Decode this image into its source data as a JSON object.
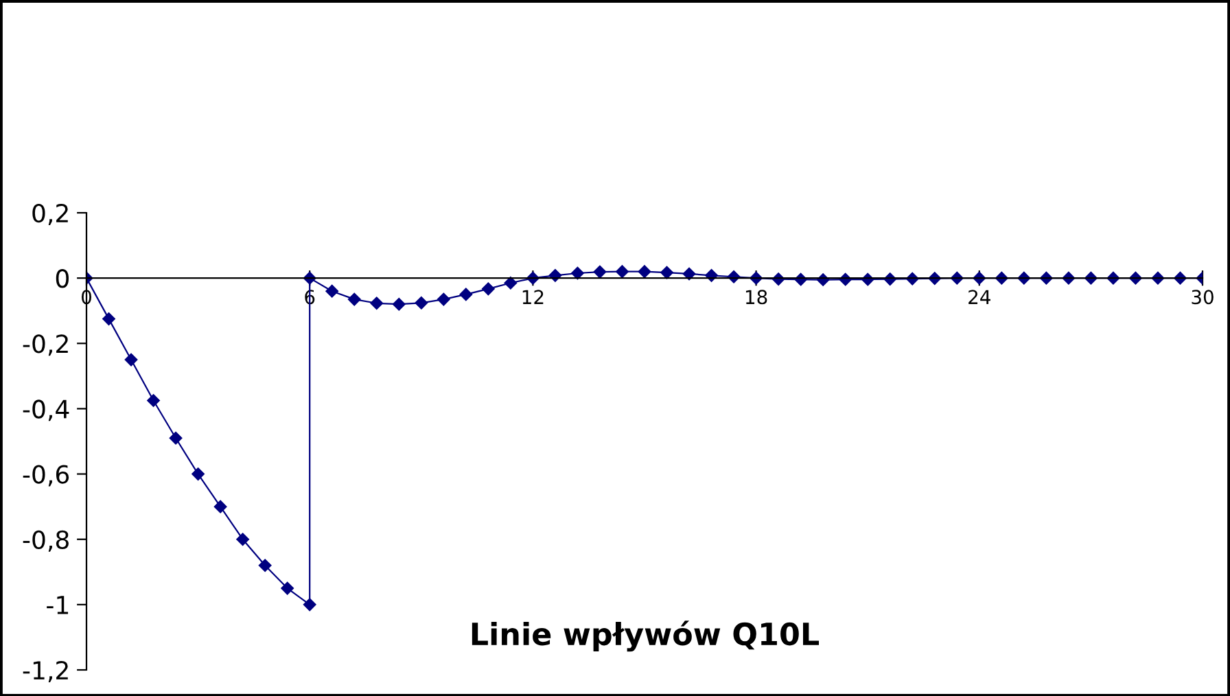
{
  "chart_data": {
    "type": "line",
    "title": "Linie wpływów Q10L",
    "x": [
      0,
      0.6,
      1.2,
      1.8,
      2.4,
      3.0,
      3.6,
      4.2,
      4.8,
      5.4,
      6,
      6,
      6.6,
      7.2,
      7.8,
      8.4,
      9.0,
      9.6,
      10.2,
      10.8,
      11.4,
      12,
      12.6,
      13.2,
      13.8,
      14.4,
      15,
      15.6,
      16.2,
      16.8,
      17.4,
      18,
      18.6,
      19.2,
      19.8,
      20.4,
      21,
      21.6,
      22.2,
      22.8,
      23.4,
      24,
      24.6,
      25.2,
      25.8,
      26.4,
      27,
      27.6,
      28.2,
      28.8,
      29.4,
      30
    ],
    "series": [
      {
        "color": "#000080",
        "values": [
          0,
          -0.125,
          -0.25,
          -0.375,
          -0.49,
          -0.6,
          -0.7,
          -0.8,
          -0.88,
          -0.95,
          -1,
          0,
          -0.04,
          -0.065,
          -0.077,
          -0.08,
          -0.076,
          -0.065,
          -0.05,
          -0.033,
          -0.015,
          0,
          0.008,
          0.015,
          0.019,
          0.02,
          0.02,
          0.017,
          0.013,
          0.008,
          0.004,
          0,
          -0.003,
          -0.004,
          -0.005,
          -0.004,
          -0.004,
          -0.003,
          -0.002,
          -0.001,
          0,
          0,
          0,
          0,
          0,
          0,
          0,
          0,
          0,
          0,
          0,
          0
        ]
      }
    ],
    "xlim": [
      0,
      30
    ],
    "xticks": [
      0,
      6,
      12,
      18,
      24,
      30
    ],
    "ylim": [
      -1.2,
      0.2
    ],
    "yticks": [
      {
        "value": 0.2,
        "label": "0,2"
      },
      0,
      {
        "value": -0.2,
        "label": "-0,2"
      },
      {
        "value": -0.4,
        "label": "-0,4"
      },
      {
        "value": -0.6,
        "label": "-0,6"
      },
      {
        "value": -0.8,
        "label": "-0,8"
      },
      {
        "value": -1,
        "label": "-1"
      },
      {
        "value": -1.2,
        "label": "-1,2"
      }
    ],
    "marker": "diamond",
    "line_style": "solid",
    "grid": false,
    "legend": false
  }
}
